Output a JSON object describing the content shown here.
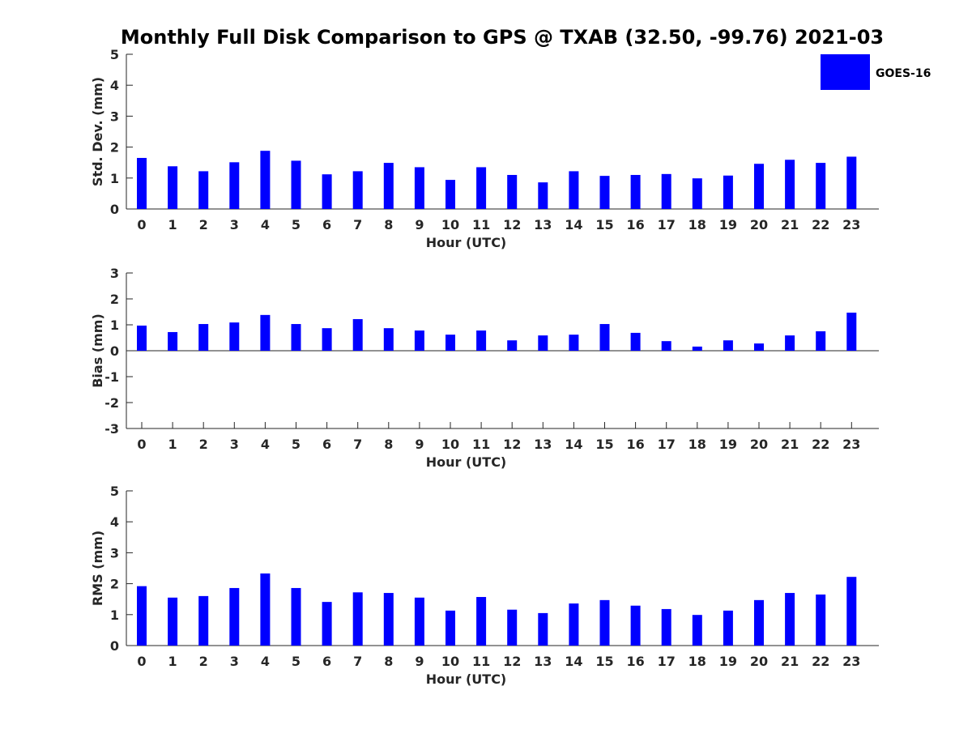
{
  "title": "Monthly Full Disk Comparison to GPS @ TXAB (32.50, -99.76) 2021-03",
  "colors": {
    "bar": "#0000ff",
    "axis": "#262626",
    "background": "#ffffff"
  },
  "legend": {
    "label": "GOES-16",
    "placement": "top-right"
  },
  "chart_data": [
    {
      "type": "bar",
      "title": "Monthly Full Disk Comparison to GPS @ TXAB (32.50, -99.76) 2021-03",
      "xlabel": "Hour (UTC)",
      "ylabel": "Std. Dev. (mm)",
      "ylim": [
        0,
        5
      ],
      "yticks": [
        "0",
        "1",
        "2",
        "3",
        "4",
        "5"
      ],
      "categories": [
        "0",
        "1",
        "2",
        "3",
        "4",
        "5",
        "6",
        "7",
        "8",
        "9",
        "10",
        "11",
        "12",
        "13",
        "14",
        "15",
        "16",
        "17",
        "18",
        "19",
        "20",
        "21",
        "22",
        "23"
      ],
      "series": [
        {
          "name": "GOES-16",
          "values": [
            1.65,
            1.38,
            1.22,
            1.51,
            1.88,
            1.56,
            1.12,
            1.22,
            1.49,
            1.35,
            0.94,
            1.35,
            1.1,
            0.86,
            1.22,
            1.07,
            1.1,
            1.13,
            0.99,
            1.08,
            1.46,
            1.59,
            1.49,
            1.69
          ]
        }
      ]
    },
    {
      "type": "bar",
      "title": "",
      "xlabel": "Hour (UTC)",
      "ylabel": "Bias (mm)",
      "ylim": [
        -3,
        3
      ],
      "yticks": [
        "-3",
        "-2",
        "-1",
        "0",
        "1",
        "2",
        "3"
      ],
      "categories": [
        "0",
        "1",
        "2",
        "3",
        "4",
        "5",
        "6",
        "7",
        "8",
        "9",
        "10",
        "11",
        "12",
        "13",
        "14",
        "15",
        "16",
        "17",
        "18",
        "19",
        "20",
        "21",
        "22",
        "23"
      ],
      "series": [
        {
          "name": "GOES-16",
          "values": [
            0.97,
            0.72,
            1.03,
            1.09,
            1.38,
            1.03,
            0.87,
            1.22,
            0.87,
            0.78,
            0.62,
            0.78,
            0.4,
            0.59,
            0.62,
            1.03,
            0.69,
            0.37,
            0.16,
            0.4,
            0.28,
            0.59,
            0.75,
            1.47
          ]
        }
      ]
    },
    {
      "type": "bar",
      "title": "",
      "xlabel": "Hour (UTC)",
      "ylabel": "RMS (mm)",
      "ylim": [
        0,
        5
      ],
      "yticks": [
        "0",
        "1",
        "2",
        "3",
        "4",
        "5"
      ],
      "categories": [
        "0",
        "1",
        "2",
        "3",
        "4",
        "5",
        "6",
        "7",
        "8",
        "9",
        "10",
        "11",
        "12",
        "13",
        "14",
        "15",
        "16",
        "17",
        "18",
        "19",
        "20",
        "21",
        "22",
        "23"
      ],
      "series": [
        {
          "name": "GOES-16",
          "values": [
            1.92,
            1.55,
            1.6,
            1.86,
            2.33,
            1.86,
            1.41,
            1.72,
            1.7,
            1.55,
            1.13,
            1.57,
            1.16,
            1.05,
            1.36,
            1.47,
            1.29,
            1.18,
            0.99,
            1.13,
            1.47,
            1.7,
            1.65,
            2.22
          ]
        }
      ]
    }
  ]
}
